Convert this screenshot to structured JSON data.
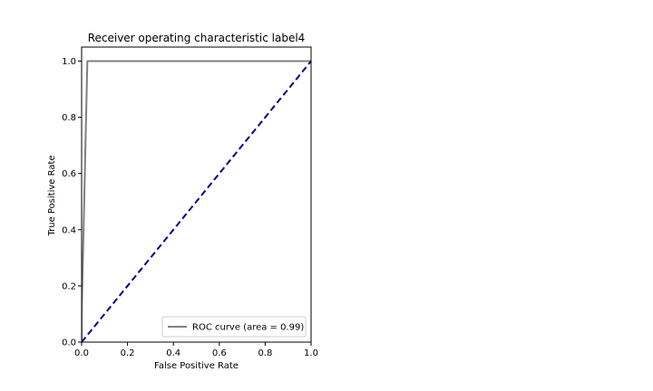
{
  "chart_data": {
    "type": "line",
    "title": "Receiver operating characteristic label4",
    "xlabel": "False Positive Rate",
    "ylabel": "True Positive Rate",
    "xlim": [
      0.0,
      1.0
    ],
    "ylim": [
      0.0,
      1.05
    ],
    "xticks": [
      0.0,
      0.2,
      0.4,
      0.6,
      0.8,
      1.0
    ],
    "yticks": [
      0.0,
      0.2,
      0.4,
      0.6,
      0.8,
      1.0
    ],
    "xtick_labels": [
      "0.0",
      "0.2",
      "0.4",
      "0.6",
      "0.8",
      "1.0"
    ],
    "ytick_labels": [
      "0.0",
      "0.2",
      "0.4",
      "0.6",
      "0.8",
      "1.0"
    ],
    "grid": false,
    "legend_position": "lower-right",
    "series": [
      {
        "name": "ROC curve (area = 0.99)",
        "color": "#808080",
        "style": "solid",
        "x": [
          0.0,
          0.0,
          0.025,
          1.0
        ],
        "y": [
          0.0,
          0.09,
          1.0,
          1.0
        ]
      },
      {
        "color": "#000080",
        "style": "dashed",
        "x": [
          0.0,
          1.0
        ],
        "y": [
          0.0,
          1.0
        ]
      }
    ],
    "legend": [
      {
        "label": "ROC curve (area = 0.99)",
        "color": "#808080"
      }
    ]
  }
}
